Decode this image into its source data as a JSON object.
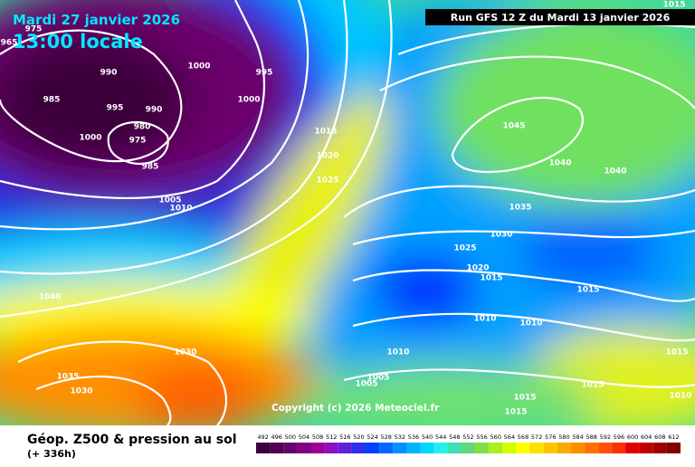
{
  "header": {
    "date": "Mardi 27 janvier 2026",
    "time": "13:00 locale",
    "run": "Run GFS 12 Z du Mardi 13 janvier 2026"
  },
  "footer": {
    "title": "Géop. Z500 & pression au sol",
    "lead": "(+ 336h)",
    "copyright": "Copyright (c) 2026 Meteociel.fr"
  },
  "colorbar": {
    "labels": [
      "492",
      "496",
      "500",
      "504",
      "508",
      "512",
      "516",
      "520",
      "524",
      "528",
      "532",
      "536",
      "540",
      "544",
      "548",
      "552",
      "556",
      "560",
      "564",
      "568",
      "572",
      "576",
      "580",
      "584",
      "588",
      "592",
      "596",
      "600",
      "604",
      "608",
      "612"
    ],
    "colors": [
      "#3a003a",
      "#520052",
      "#6a006a",
      "#820082",
      "#9a009a",
      "#8a10c0",
      "#6020e0",
      "#3030e8",
      "#0040ff",
      "#0068ff",
      "#0090ff",
      "#00b4ff",
      "#00d8ff",
      "#20f0f0",
      "#40e0b0",
      "#60d878",
      "#80e040",
      "#a8f020",
      "#d0ff00",
      "#ffff00",
      "#ffe000",
      "#ffc400",
      "#ffa800",
      "#ff8c00",
      "#ff7000",
      "#ff5000",
      "#ff3000",
      "#e00000",
      "#c00000",
      "#a00000",
      "#800000"
    ]
  },
  "isobar_labels": [
    "975",
    "965",
    "990",
    "1000",
    "995",
    "985",
    "995",
    "990",
    "1000",
    "980",
    "1000",
    "975",
    "985",
    "1005",
    "1010",
    "1015",
    "1020",
    "1025",
    "1045",
    "1040",
    "1040",
    "1035",
    "1030",
    "1025",
    "1020",
    "1015",
    "1015",
    "1040",
    "1010",
    "1010",
    "1030",
    "1010",
    "1015",
    "1035",
    "1005",
    "1030",
    "1005",
    "1015",
    "1015",
    "1010",
    "1015",
    "1015"
  ]
}
